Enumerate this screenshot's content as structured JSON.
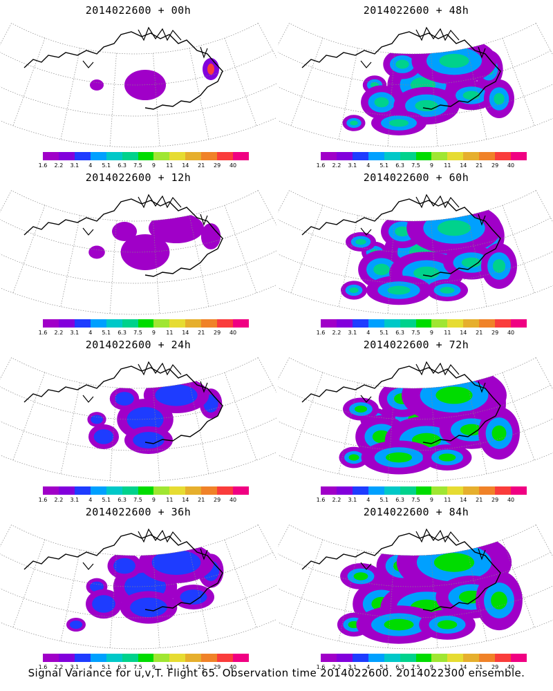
{
  "panels": [
    {
      "title": "2014022600 + 00h",
      "intensity": 0
    },
    {
      "title": "2014022600 + 48h",
      "intensity": 4
    },
    {
      "title": "2014022600 + 12h",
      "intensity": 1
    },
    {
      "title": "2014022600 + 60h",
      "intensity": 5
    },
    {
      "title": "2014022600 + 24h",
      "intensity": 2
    },
    {
      "title": "2014022600 + 72h",
      "intensity": 6
    },
    {
      "title": "2014022600 + 36h",
      "intensity": 3
    },
    {
      "title": "2014022600 + 84h",
      "intensity": 7
    }
  ],
  "legend": {
    "labels": [
      "1.6",
      "2.2",
      "3.1",
      "4",
      "5.1",
      "6.3",
      "7.5",
      "9",
      "11",
      "14",
      "21",
      "29",
      "40"
    ],
    "colors": [
      "#a000c8",
      "#8200dc",
      "#1e3cff",
      "#00a0ff",
      "#00c8c8",
      "#00d28c",
      "#00dc00",
      "#a0e632",
      "#e6dc32",
      "#e6af2d",
      "#f08228",
      "#fa3c3c",
      "#f00082"
    ]
  },
  "footer": "Signal Variance for u,v,T. Flight 65. Observation time 2014022600. 2014022300 ensemble."
}
